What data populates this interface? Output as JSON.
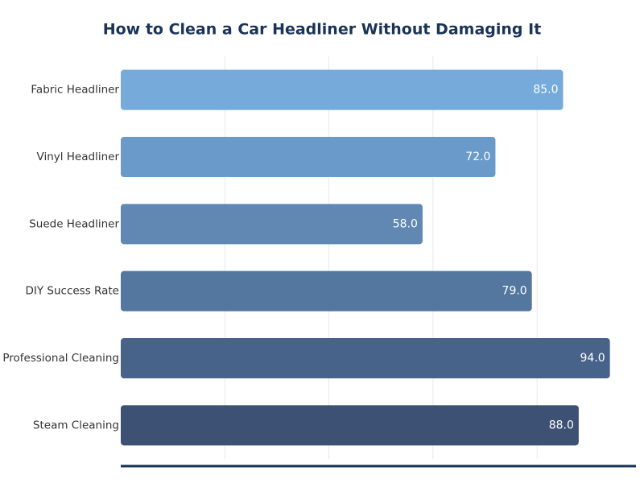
{
  "chart_data": {
    "type": "barh",
    "title": "How to Clean a Car Headliner Without Damaging It",
    "categories": [
      "Fabric Headliner",
      "Vinyl Headliner",
      "Suede Headliner",
      "DIY Success Rate",
      "Professional Cleaning",
      "Steam Cleaning"
    ],
    "values": [
      85,
      72,
      58,
      79,
      94,
      88
    ],
    "value_labels": [
      "85.0",
      "72.0",
      "58.0",
      "79.0",
      "94.0",
      "88.0"
    ],
    "colors": [
      "#75aadb",
      "#6a9aca",
      "#6088b3",
      "#54779f",
      "#48638a",
      "#3d5175"
    ],
    "xlim": [
      0,
      99
    ],
    "xticks": [
      20,
      40,
      60,
      80
    ],
    "grid": true
  }
}
